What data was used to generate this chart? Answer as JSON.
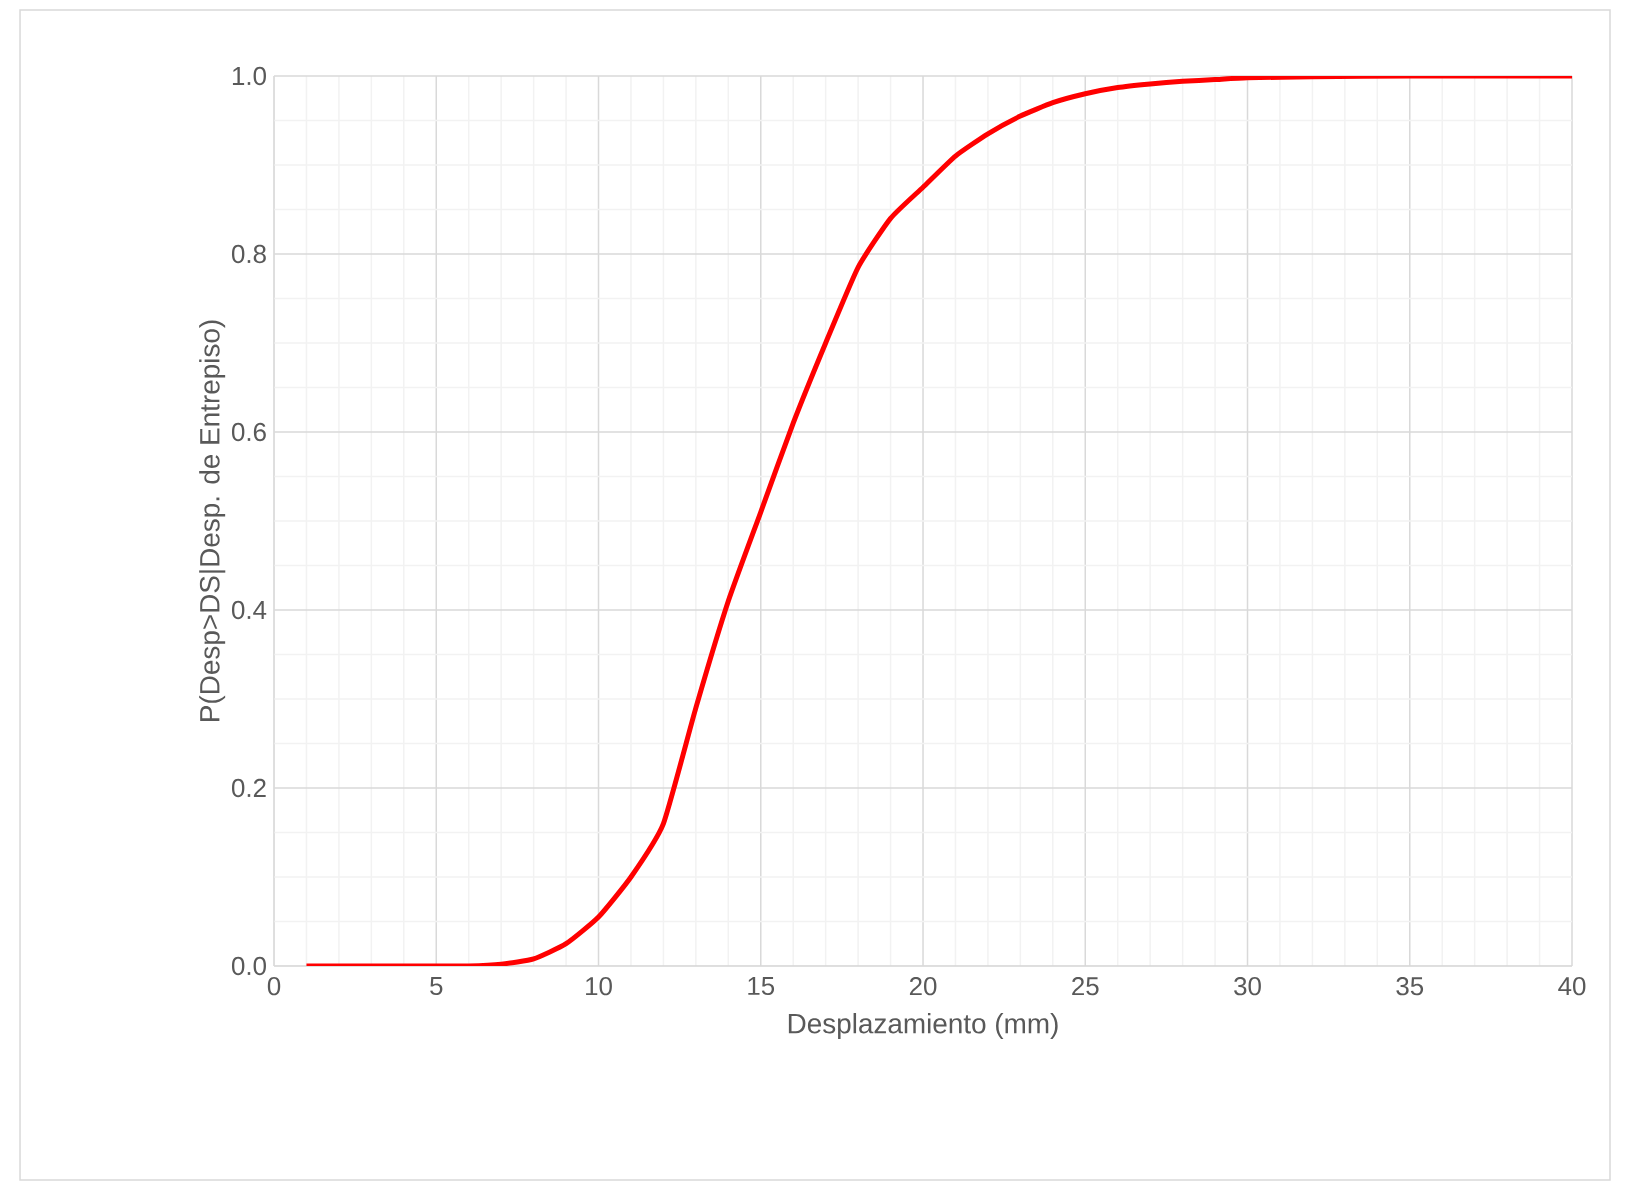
{
  "chart_data": {
    "type": "line",
    "xlabel": "Desplazamiento (mm)",
    "ylabel": "P(Desp>DS|Desp. de Entrepiso)",
    "x": [
      1,
      2,
      3,
      4,
      5,
      6,
      7,
      8,
      9,
      10,
      11,
      12,
      13,
      14,
      15,
      16,
      17,
      18,
      19,
      20,
      21,
      22,
      23,
      24,
      25,
      26,
      27,
      28,
      29,
      30,
      32,
      35,
      40
    ],
    "series": [
      {
        "color": "#ff0000",
        "values": [
          0,
          0,
          0,
          0,
          0,
          0,
          0.002,
          0.008,
          0.025,
          0.055,
          0.1,
          0.16,
          0.29,
          0.41,
          0.51,
          0.61,
          0.7,
          0.785,
          0.84,
          0.875,
          0.91,
          0.935,
          0.955,
          0.97,
          0.98,
          0.987,
          0.991,
          0.994,
          0.996,
          0.998,
          0.999,
          1,
          1
        ]
      }
    ],
    "xlim": [
      0,
      40
    ],
    "ylim": [
      0,
      1
    ],
    "xticks": [
      0,
      5,
      10,
      15,
      20,
      25,
      30,
      35,
      40
    ],
    "yticks": [
      {
        "value": 0,
        "label": "0.0"
      },
      {
        "value": 0.2,
        "label": "0.2"
      },
      {
        "value": 0.4,
        "label": "0.4"
      },
      {
        "value": 0.6,
        "label": "0.6"
      },
      {
        "value": 0.8,
        "label": "0.8"
      },
      {
        "value": 1,
        "label": "1.0"
      }
    ],
    "grid": true,
    "marker": "none",
    "line_style": "solid"
  }
}
